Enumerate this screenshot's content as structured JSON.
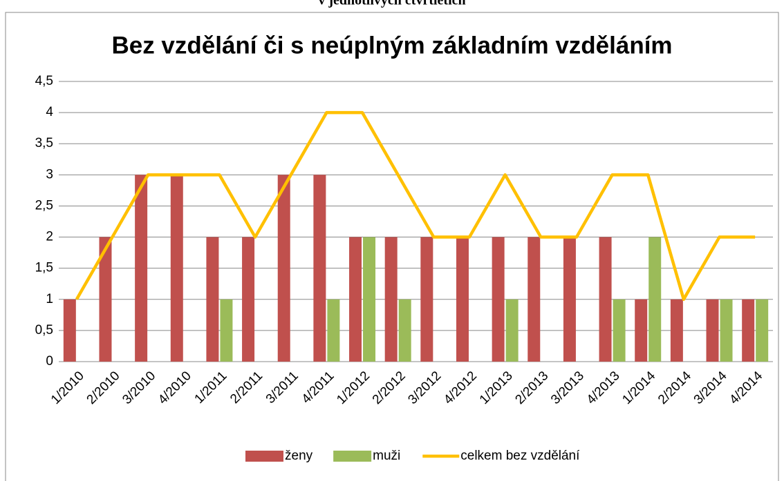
{
  "chart_data": {
    "type": "bar_line",
    "supertitle": "v jednotlivých čtvrtletích",
    "title": "Bez vzdělání či s neúplným základním vzděláním",
    "categories": [
      "1/2010",
      "2/2010",
      "3/2010",
      "4/2010",
      "1/2011",
      "2/2011",
      "3/2011",
      "4/2011",
      "1/2012",
      "2/2012",
      "3/2012",
      "4/2012",
      "1/2013",
      "2/2013",
      "3/2013",
      "4/2013",
      "1/2014",
      "2/2014",
      "3/2014",
      "4/2014"
    ],
    "series": [
      {
        "name": "ženy",
        "kind": "bar",
        "color": "#c0504d",
        "values": [
          1,
          2,
          3,
          3,
          2,
          2,
          3,
          3,
          2,
          2,
          2,
          2,
          2,
          2,
          2,
          2,
          1,
          1,
          1,
          1
        ]
      },
      {
        "name": "muži",
        "kind": "bar",
        "color": "#9bbb59",
        "values": [
          0,
          0,
          0,
          0,
          1,
          0,
          0,
          1,
          2,
          1,
          0,
          0,
          1,
          0,
          0,
          1,
          2,
          0,
          1,
          1
        ]
      },
      {
        "name": "celkem bez vzdělání",
        "kind": "line",
        "color": "#ffc000",
        "values": [
          1,
          2,
          3,
          3,
          3,
          2,
          3,
          4,
          4,
          3,
          2,
          2,
          3,
          2,
          2,
          3,
          3,
          1,
          2,
          2
        ]
      }
    ],
    "ylim": [
      0,
      4.5
    ],
    "yticks": [
      0,
      {
        "value": 0.5,
        "label": "0,5"
      },
      1,
      {
        "value": 1.5,
        "label": "1,5"
      },
      2,
      {
        "value": 2.5,
        "label": "2,5"
      },
      3,
      {
        "value": 3.5,
        "label": "3,5"
      },
      4,
      {
        "value": 4.5,
        "label": "4,5"
      }
    ],
    "grid": true,
    "legend": "bottom"
  }
}
